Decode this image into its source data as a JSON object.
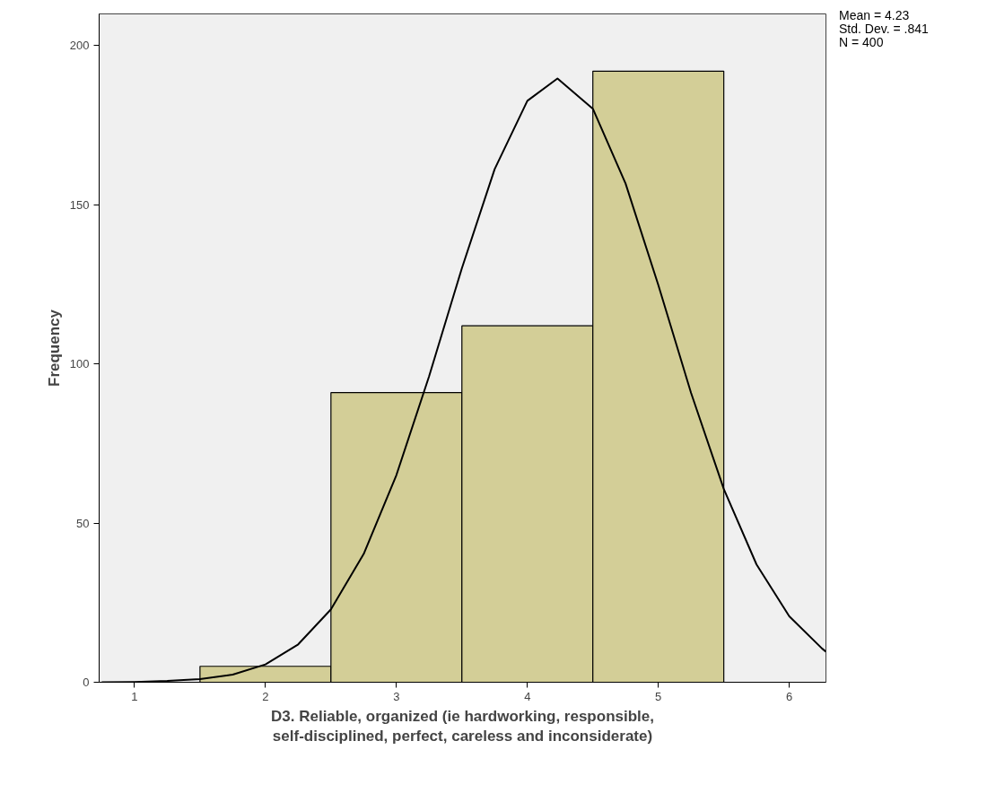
{
  "chart_data": {
    "type": "histogram",
    "xlabel": "D3. Reliable, organized (ie hardworking, responsible,\nself-disciplined, perfect, careless and inconsiderate)",
    "ylabel": "Frequency",
    "annotations": [
      "Mean = 4.23",
      "Std. Dev. = .841",
      "N = 400"
    ],
    "series": [
      {
        "bins": [
          1.5,
          2.5,
          3.5,
          4.5,
          5.5
        ],
        "values": [
          5,
          91,
          112,
          192
        ],
        "color": "#d3ce97"
      },
      {
        "type": "line",
        "color": "#000000",
        "x": [
          0.75,
          1,
          1.25,
          1.5,
          1.75,
          2,
          2.25,
          2.5,
          2.75,
          3,
          3.25,
          3.5,
          3.75,
          4,
          4.23,
          4.5,
          4.75,
          5,
          5.25,
          5.5,
          5.75,
          6,
          6.25,
          6.28
        ],
        "values": [
          0,
          0.1,
          0.4,
          1,
          2.4,
          5.6,
          11.9,
          22.9,
          40.3,
          65.1,
          96.2,
          130.1,
          161.2,
          182.7,
          189.7,
          180.2,
          156.7,
          124.8,
          90.9,
          60.7,
          37.0,
          20.7,
          10.6,
          9.6
        ]
      }
    ],
    "xlim": [
      0.73,
      6.28
    ],
    "ylim": [
      0,
      210
    ],
    "xticks": [
      1,
      2,
      3,
      4,
      5,
      6
    ],
    "yticks": [
      0,
      50,
      100,
      150,
      200
    ],
    "grid": false,
    "line_style": "solid"
  }
}
